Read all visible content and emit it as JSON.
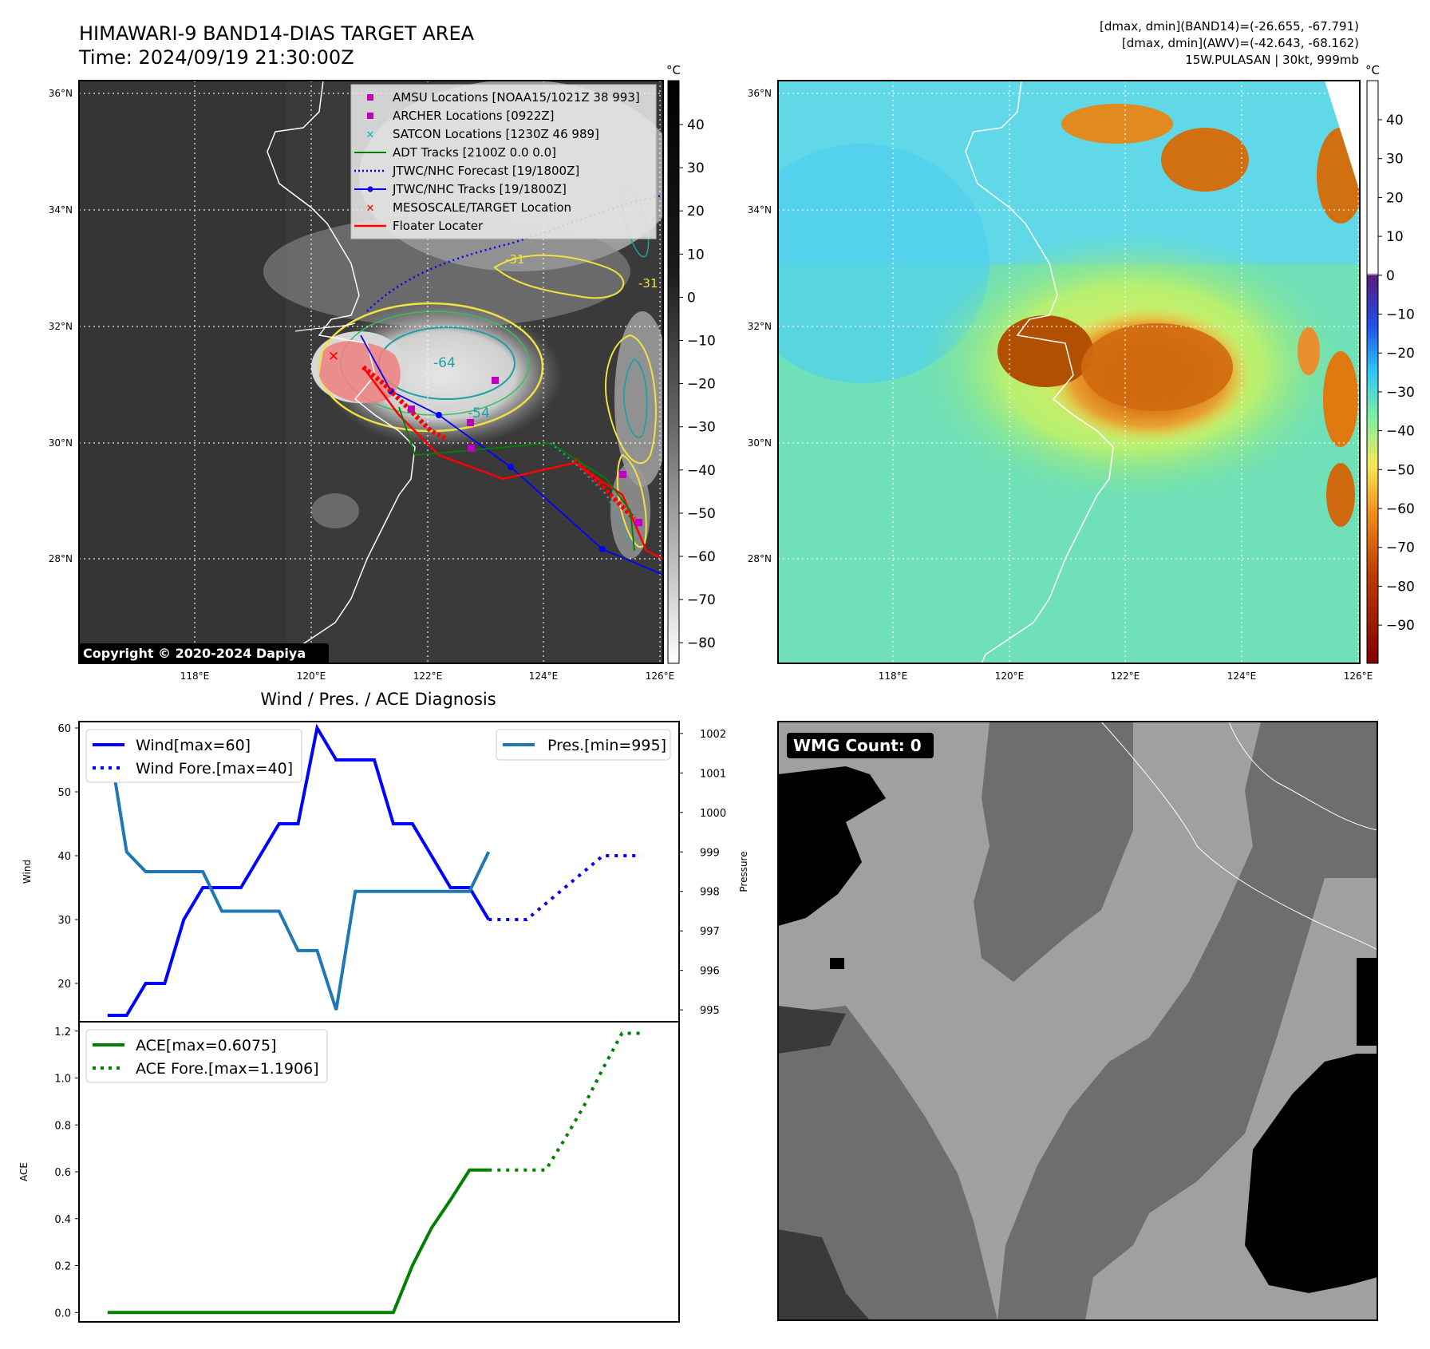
{
  "header": {
    "title": "HIMAWARI-9 BAND14-DIAS TARGET AREA",
    "time": "Time: 2024/09/19 21:30:00Z",
    "stats_line1": "[dmax, dmin](BAND14)=(-26.655, -67.791)",
    "stats_line2": "[dmax, dmin](AWV)=(-42.643, -68.162)",
    "stats_line3": "15W.PULASAN | 30kt, 999mb",
    "copyright": "Copyright © 2020-2024 Dapiya"
  },
  "colors": {
    "wind": "#0000ff",
    "pressure": "#1f77b4",
    "ace": "#008000",
    "floater": "#ff0000",
    "amsu": "#bf00bf",
    "satcon": "#00bfbf",
    "adt": "#008000"
  },
  "map": {
    "lat_labels": [
      "36°N",
      "34°N",
      "32°N",
      "30°N",
      "28°N"
    ],
    "lon_labels": [
      "118°E",
      "120°E",
      "122°E",
      "124°E",
      "126°E"
    ],
    "contour_labels": [
      "-64",
      "-54",
      "-31",
      "-31"
    ],
    "legend": [
      {
        "label": "AMSU Locations [NOAA15/1021Z 38 993]",
        "icon": "square-marker"
      },
      {
        "label": "ARCHER Locations [0922Z]",
        "icon": "square-marker"
      },
      {
        "label": "SATCON Locations [1230Z 46 989]",
        "icon": "x-marker"
      },
      {
        "label": "ADT Tracks [2100Z 0.0 0.0]",
        "icon": "solid-line"
      },
      {
        "label": "JTWC/NHC Forecast [19/1800Z]",
        "icon": "dotted-line"
      },
      {
        "label": "JTWC/NHC Tracks [19/1800Z]",
        "icon": "line-dot"
      },
      {
        "label": "MESOSCALE/TARGET Location",
        "icon": "x-marker"
      },
      {
        "label": "Floater Locater",
        "icon": "solid-line"
      }
    ],
    "colorbar1": {
      "unit": "°C",
      "ticks": [
        "40",
        "30",
        "20",
        "10",
        "0",
        "−10",
        "−20",
        "−30",
        "−40",
        "−50",
        "−60",
        "−70",
        "−80"
      ]
    },
    "colorbar2": {
      "unit": "°C",
      "ticks": [
        "40",
        "30",
        "20",
        "10",
        "0",
        "−10",
        "−20",
        "−30",
        "−40",
        "−50",
        "−60",
        "−70",
        "−80",
        "−90"
      ]
    },
    "wmg_label": "WMG Count: 0"
  },
  "chart_data": [
    {
      "type": "line",
      "title": "Wind / Pres. / ACE Diagnosis",
      "xlabel": "",
      "ylabel": "Wind",
      "ylabel_right": "Pressure",
      "ylim": [
        14,
        61
      ],
      "ylim_right": [
        994.7,
        1002.3
      ],
      "yticks": [
        20,
        30,
        40,
        50,
        60
      ],
      "yticks_right": [
        995,
        996,
        997,
        998,
        999,
        1000,
        1001,
        1002
      ],
      "x": [
        0,
        1,
        2,
        3,
        4,
        5,
        6,
        7,
        8,
        9,
        10,
        11,
        12,
        13,
        14,
        15,
        16,
        17,
        18,
        19,
        20,
        21,
        22,
        23,
        24,
        25,
        26,
        27,
        28
      ],
      "series": [
        {
          "name": "Wind[max=60]",
          "axis": "left",
          "style": "solid",
          "x": [
            0,
            1,
            2,
            3,
            4,
            5,
            6,
            7,
            8,
            9,
            10,
            11,
            12,
            13,
            14,
            15,
            16,
            17,
            18,
            19,
            20
          ],
          "values": [
            15,
            15,
            20,
            20,
            30,
            35,
            35,
            35,
            40,
            45,
            45,
            60,
            55,
            55,
            55,
            45,
            45,
            40,
            35,
            35,
            30
          ]
        },
        {
          "name": "Wind Fore.[max=40]",
          "axis": "left",
          "style": "dotted",
          "x": [
            20,
            21,
            22,
            23,
            24,
            25,
            26,
            27,
            28
          ],
          "values": [
            30,
            30,
            30,
            32.5,
            35,
            37.5,
            40,
            40,
            40
          ]
        },
        {
          "name": "Pres.[min=995]",
          "axis": "right",
          "style": "solid",
          "x": [
            0,
            1,
            2,
            3,
            4,
            5,
            6,
            7,
            8,
            9,
            10,
            11,
            12,
            13,
            14,
            15,
            16,
            17,
            18,
            19,
            20
          ],
          "values": [
            1002,
            999,
            998.5,
            998.5,
            998.5,
            998.5,
            997.5,
            997.5,
            997.5,
            997.5,
            996.5,
            996.5,
            995,
            998,
            998,
            998,
            998,
            998,
            998,
            998,
            999
          ]
        }
      ]
    },
    {
      "type": "line",
      "ylabel": "ACE",
      "ylim": [
        -0.04,
        1.24
      ],
      "yticks": [
        0.0,
        0.2,
        0.4,
        0.6,
        0.8,
        1.0,
        1.2
      ],
      "series": [
        {
          "name": "ACE[max=0.6075]",
          "style": "solid",
          "x": [
            0,
            1,
            2,
            3,
            4,
            5,
            6,
            7,
            8,
            9,
            10,
            11,
            12,
            13,
            14,
            15,
            16,
            17,
            18,
            19,
            20
          ],
          "values": [
            0,
            0,
            0,
            0,
            0,
            0,
            0,
            0,
            0,
            0,
            0,
            0,
            0,
            0,
            0,
            0,
            0.2,
            0.36,
            0.48,
            0.6075,
            0.6075
          ]
        },
        {
          "name": "ACE Fore.[max=1.1906]",
          "style": "dotted",
          "x": [
            20,
            21,
            22,
            23,
            24,
            25,
            26,
            27,
            28
          ],
          "values": [
            0.6075,
            0.6075,
            0.6075,
            0.6075,
            0.74,
            0.88,
            1.04,
            1.1906,
            1.1906
          ]
        }
      ]
    }
  ]
}
